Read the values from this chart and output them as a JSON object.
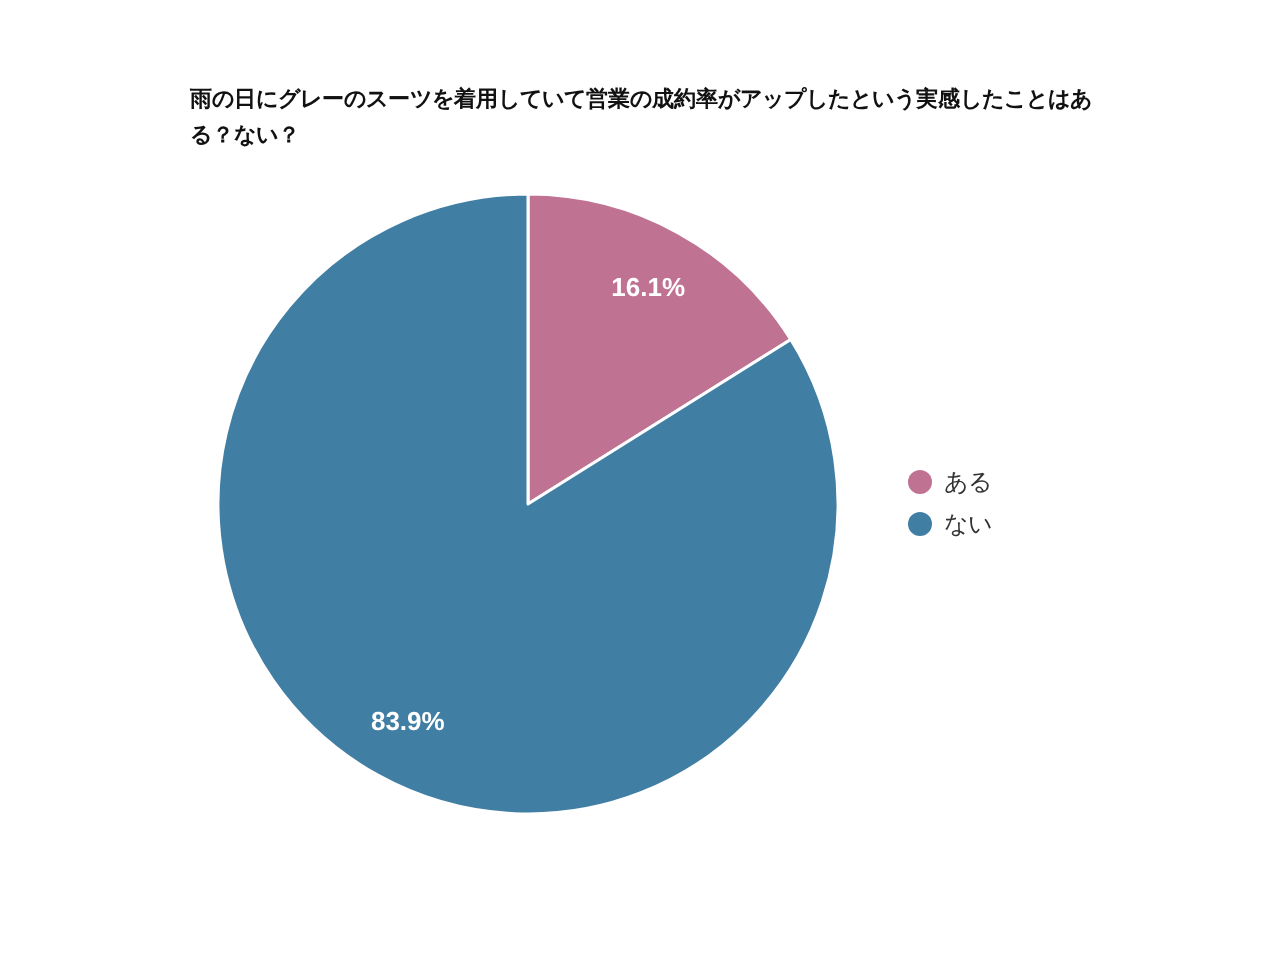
{
  "chart_data": {
    "type": "pie",
    "title": "雨の日にグレーのスーツを着用していて営業の成約率がアップしたという実感したことはある？ない？",
    "categories": [
      "ある",
      "ない"
    ],
    "values": [
      16.1,
      83.9
    ],
    "colors": [
      "#c07292",
      "#417ea3"
    ],
    "value_labels": [
      "16.1%",
      "83.9%"
    ],
    "legend": "right"
  }
}
